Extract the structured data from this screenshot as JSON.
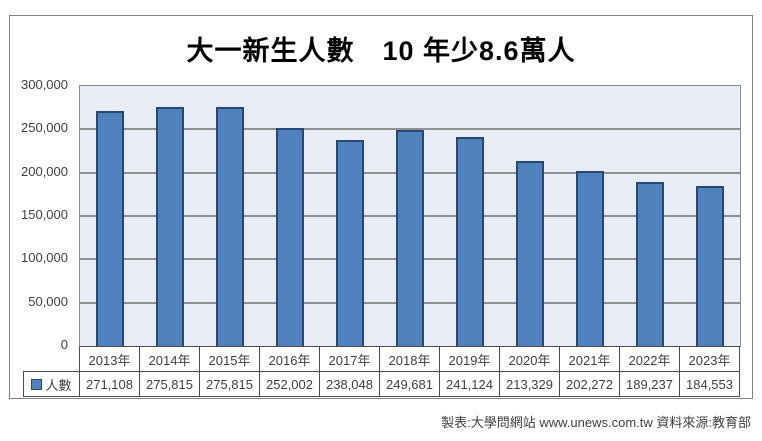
{
  "chart_data": {
    "type": "bar",
    "title": "大一新生人數　10 年少8.6萬人",
    "categories": [
      "2013年",
      "2014年",
      "2015年",
      "2016年",
      "2017年",
      "2018年",
      "2019年",
      "2020年",
      "2021年",
      "2022年",
      "2023年"
    ],
    "series": [
      {
        "name": "人數",
        "values": [
          271108,
          275815,
          275815,
          252002,
          238048,
          249681,
          241124,
          213329,
          202272,
          189237,
          184553
        ],
        "value_labels": [
          "271,108",
          "275,815",
          "275,815",
          "252,002",
          "238,048",
          "249,681",
          "241,124",
          "213,329",
          "202,272",
          "189,237",
          "184,553"
        ]
      }
    ],
    "xlabel": "",
    "ylabel": "",
    "ylim": [
      0,
      300000
    ],
    "ytick_interval": 50000,
    "ytick_labels": [
      "0",
      "50,000",
      "100,000",
      "150,000",
      "200,000",
      "250,000",
      "300,000"
    ],
    "grid": true,
    "legend_position": "data-table-left"
  },
  "footer": {
    "credit": "製表:大學問網站 www.unews.com.tw 資料來源:教育部"
  },
  "colors": {
    "bar_fill": "#4f81bd",
    "bar_border": "#254974",
    "plot_bg": "#e8ecf4",
    "gridline": "#909090",
    "chart_border": "#828282",
    "table_border": "#4d4d4d",
    "text": "#3f3f3f",
    "title_text": "#000000"
  }
}
